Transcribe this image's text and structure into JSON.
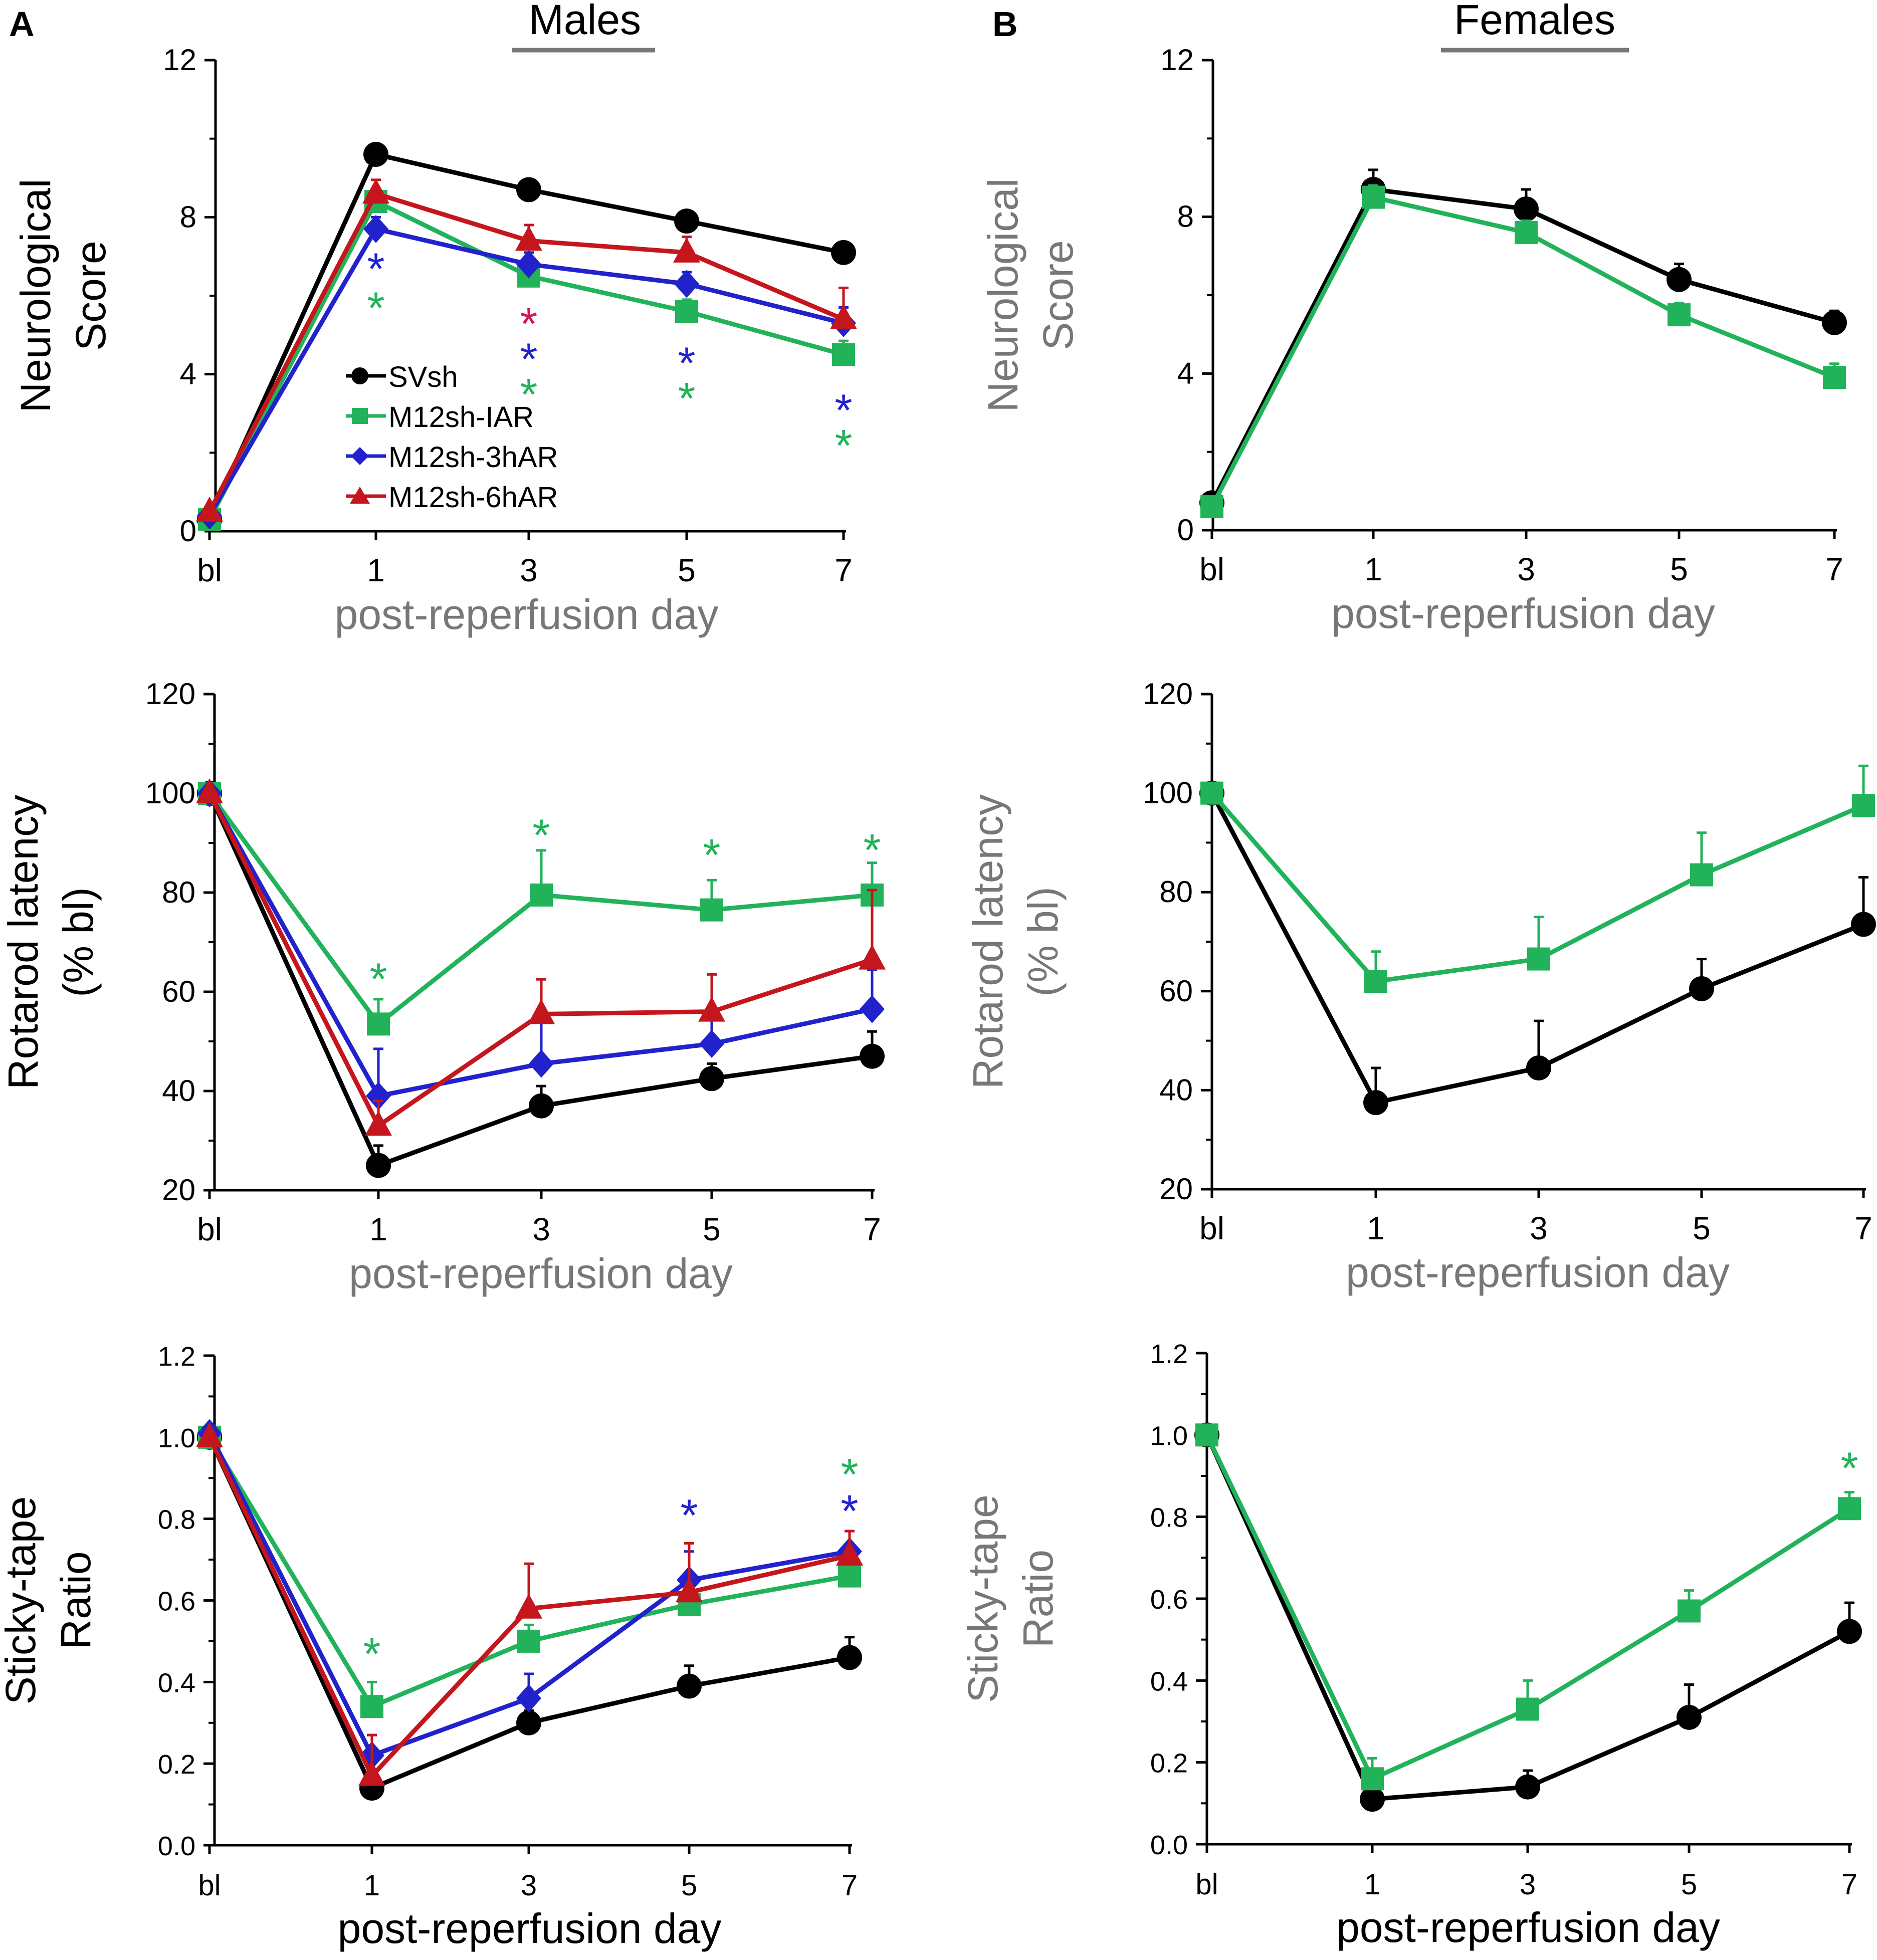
{
  "panel_labels": {
    "a": "A",
    "b": "B"
  },
  "column_titles": {
    "males": "Males",
    "females": "Females"
  },
  "colors": {
    "SVsh": "#000000",
    "M12sh-IAR": "#22b35a",
    "M12sh-3hAR": "#2222cc",
    "M12sh-6hAR": "#c4161c",
    "axis_gray": "#777777",
    "star_red": "#d4145a"
  },
  "legend": {
    "items": [
      {
        "name": "SVsh",
        "marker": "circle"
      },
      {
        "name": "M12sh-IAR",
        "marker": "square"
      },
      {
        "name": "M12sh-3hAR",
        "marker": "diamond"
      },
      {
        "name": "M12sh-6hAR",
        "marker": "triangle"
      }
    ]
  },
  "chart_data": [
    {
      "type": "line",
      "panel": "A",
      "title": "Males",
      "ylabel": [
        "Neurological",
        "Score"
      ],
      "ylabel_color": "#000000",
      "xlabel": "post-reperfusion day",
      "xlabel_color": "#777777",
      "categories": [
        "bl",
        "1",
        "3",
        "5",
        "7"
      ],
      "ylim": [
        0,
        12
      ],
      "yticks": [
        "0",
        "4",
        "8",
        "12"
      ],
      "series": [
        {
          "name": "SVsh",
          "marker": "circle",
          "values": [
            0.3,
            9.6,
            8.7,
            7.9,
            7.1
          ],
          "errors": [
            0,
            0.15,
            0.15,
            0.15,
            0.2
          ]
        },
        {
          "name": "M12sh-IAR",
          "marker": "square",
          "values": [
            0.3,
            8.4,
            6.5,
            5.6,
            4.5
          ],
          "errors": [
            0,
            0.3,
            0.3,
            0.3,
            0.35
          ]
        },
        {
          "name": "M12sh-3hAR",
          "marker": "diamond",
          "values": [
            0.4,
            7.7,
            6.8,
            6.3,
            5.3
          ],
          "errors": [
            0,
            0.3,
            0.3,
            0.3,
            0.4
          ]
        },
        {
          "name": "M12sh-6hAR",
          "marker": "triangle",
          "values": [
            0.5,
            8.6,
            7.4,
            7.1,
            5.4
          ],
          "errors": [
            0,
            0.35,
            0.4,
            0.4,
            0.8
          ]
        }
      ],
      "annotations": [
        {
          "text": "*",
          "x": "1",
          "y": 6.8,
          "color": "#2222cc"
        },
        {
          "text": "*",
          "x": "1",
          "y": 5.8,
          "color": "#22b35a"
        },
        {
          "text": "*",
          "x": "3",
          "y": 5.4,
          "color": "#d4145a"
        },
        {
          "text": "*",
          "x": "3",
          "y": 4.5,
          "color": "#2222cc"
        },
        {
          "text": "*",
          "x": "3",
          "y": 3.6,
          "color": "#22b35a"
        },
        {
          "text": "*",
          "x": "5",
          "y": 4.4,
          "color": "#2222cc"
        },
        {
          "text": "*",
          "x": "5",
          "y": 3.5,
          "color": "#22b35a"
        },
        {
          "text": "*",
          "x": "7",
          "y": 3.2,
          "color": "#2222cc"
        },
        {
          "text": "*",
          "x": "7",
          "y": 2.3,
          "color": "#22b35a"
        }
      ]
    },
    {
      "type": "line",
      "panel": "B",
      "title": "Females",
      "ylabel": [
        "Neurological",
        "Score"
      ],
      "ylabel_color": "#777777",
      "xlabel": "post-reperfusion day",
      "xlabel_color": "#777777",
      "categories": [
        "bl",
        "1",
        "3",
        "5",
        "7"
      ],
      "ylim": [
        0,
        12
      ],
      "yticks": [
        "0",
        "4",
        "8",
        "12"
      ],
      "series": [
        {
          "name": "SVsh",
          "marker": "circle",
          "values": [
            0.7,
            8.7,
            8.2,
            6.4,
            5.3
          ],
          "errors": [
            0,
            0.5,
            0.5,
            0.4,
            0.3
          ]
        },
        {
          "name": "M12sh-IAR",
          "marker": "square",
          "values": [
            0.6,
            8.5,
            7.6,
            5.5,
            3.9
          ],
          "errors": [
            0,
            0.3,
            0.3,
            0.3,
            0.35
          ]
        }
      ],
      "annotations": []
    },
    {
      "type": "line",
      "panel": "A",
      "ylabel": [
        "Rotarod latency",
        "(% bl)"
      ],
      "ylabel_color": "#000000",
      "xlabel": "post-reperfusion day",
      "xlabel_color": "#777777",
      "categories": [
        "bl",
        "1",
        "3",
        "5",
        "7"
      ],
      "ylim": [
        20,
        120
      ],
      "yticks": [
        "20",
        "40",
        "60",
        "80",
        "100",
        "120"
      ],
      "series": [
        {
          "name": "SVsh",
          "marker": "circle",
          "values": [
            100,
            25,
            37,
            42.5,
            47
          ],
          "errors": [
            0,
            4,
            4,
            3,
            5
          ]
        },
        {
          "name": "M12sh-IAR",
          "marker": "square",
          "values": [
            100,
            53.5,
            79.5,
            76.5,
            79.5
          ],
          "errors": [
            0,
            5,
            9,
            6,
            6.5
          ]
        },
        {
          "name": "M12sh-3hAR",
          "marker": "diamond",
          "values": [
            100,
            39,
            45.5,
            49.5,
            56.5
          ],
          "errors": [
            0,
            9.5,
            9,
            6,
            8
          ]
        },
        {
          "name": "M12sh-6hAR",
          "marker": "triangle",
          "values": [
            100,
            33,
            55.5,
            56,
            66.5
          ],
          "errors": [
            0,
            5,
            7,
            7.5,
            14
          ]
        }
      ],
      "annotations": [
        {
          "text": "*",
          "x": "1",
          "y": 63.5,
          "color": "#22b35a"
        },
        {
          "text": "*",
          "x": "3",
          "y": 92.5,
          "color": "#22b35a"
        },
        {
          "text": "*",
          "x": "5",
          "y": 88.5,
          "color": "#22b35a"
        },
        {
          "text": "*",
          "x": "7",
          "y": 89.5,
          "color": "#22b35a"
        }
      ]
    },
    {
      "type": "line",
      "panel": "B",
      "ylabel": [
        "Rotarod latency",
        "(% bl)"
      ],
      "ylabel_color": "#777777",
      "xlabel": "post-reperfusion day",
      "xlabel_color": "#777777",
      "categories": [
        "bl",
        "1",
        "3",
        "5",
        "7"
      ],
      "ylim": [
        20,
        120
      ],
      "yticks": [
        "20",
        "40",
        "60",
        "80",
        "100",
        "120"
      ],
      "series": [
        {
          "name": "SVsh",
          "marker": "circle",
          "values": [
            100,
            37.5,
            44.5,
            60.5,
            73.5
          ],
          "errors": [
            0,
            7,
            9.5,
            6,
            9.5
          ]
        },
        {
          "name": "M12sh-IAR",
          "marker": "square",
          "values": [
            100,
            62,
            66.5,
            83.5,
            97.5
          ],
          "errors": [
            0,
            6,
            8.5,
            8.5,
            8
          ]
        }
      ],
      "annotations": []
    },
    {
      "type": "line",
      "panel": "A",
      "ylabel": [
        "Sticky-tape",
        "Ratio"
      ],
      "ylabel_color": "#000000",
      "xlabel": "post-reperfusion day",
      "xlabel_color": "#000000",
      "categories": [
        "bl",
        "1",
        "3",
        "5",
        "7"
      ],
      "ylim": [
        0,
        1.2
      ],
      "yticks": [
        "0.0",
        "0.2",
        "0.4",
        "0.6",
        "0.8",
        "1.0",
        "1.2"
      ],
      "series": [
        {
          "name": "SVsh",
          "marker": "circle",
          "values": [
            1.0,
            0.14,
            0.3,
            0.39,
            0.46
          ],
          "errors": [
            0,
            0.02,
            0.03,
            0.05,
            0.05
          ]
        },
        {
          "name": "M12sh-IAR",
          "marker": "square",
          "values": [
            1.0,
            0.34,
            0.5,
            0.59,
            0.66
          ],
          "errors": [
            0,
            0.06,
            0.04,
            0.03,
            0.03
          ]
        },
        {
          "name": "M12sh-3hAR",
          "marker": "diamond",
          "values": [
            1.01,
            0.22,
            0.36,
            0.65,
            0.72
          ],
          "errors": [
            0,
            0.05,
            0.06,
            0.07,
            0.05
          ]
        },
        {
          "name": "M12sh-6hAR",
          "marker": "triangle",
          "values": [
            1.0,
            0.17,
            0.58,
            0.62,
            0.71
          ],
          "errors": [
            0,
            0.1,
            0.11,
            0.12,
            0.06
          ]
        }
      ],
      "annotations": [
        {
          "text": "*",
          "x": "1",
          "y": 0.48,
          "color": "#22b35a"
        },
        {
          "text": "*",
          "x": "5",
          "y": 0.82,
          "color": "#2222cc"
        },
        {
          "text": "*",
          "x": "7",
          "y": 0.83,
          "color": "#2222cc"
        },
        {
          "text": "*",
          "x": "7",
          "y": 0.92,
          "color": "#22b35a"
        }
      ]
    },
    {
      "type": "line",
      "panel": "B",
      "ylabel": [
        "Sticky-tape",
        "Ratio"
      ],
      "ylabel_color": "#777777",
      "xlabel": "post-reperfusion day",
      "xlabel_color": "#000000",
      "categories": [
        "bl",
        "1",
        "3",
        "5",
        "7"
      ],
      "ylim": [
        0,
        1.2
      ],
      "yticks": [
        "0.0",
        "0.2",
        "0.4",
        "0.6",
        "0.8",
        "1.0",
        "1.2"
      ],
      "series": [
        {
          "name": "SVsh",
          "marker": "circle",
          "values": [
            1.0,
            0.11,
            0.14,
            0.31,
            0.52
          ],
          "errors": [
            0,
            0.02,
            0.04,
            0.08,
            0.07
          ]
        },
        {
          "name": "M12sh-IAR",
          "marker": "square",
          "values": [
            1.0,
            0.16,
            0.33,
            0.57,
            0.82
          ],
          "errors": [
            0,
            0.05,
            0.07,
            0.05,
            0.04
          ]
        }
      ],
      "annotations": [
        {
          "text": "*",
          "x": "7",
          "y": 0.93,
          "color": "#22b35a"
        }
      ]
    }
  ]
}
